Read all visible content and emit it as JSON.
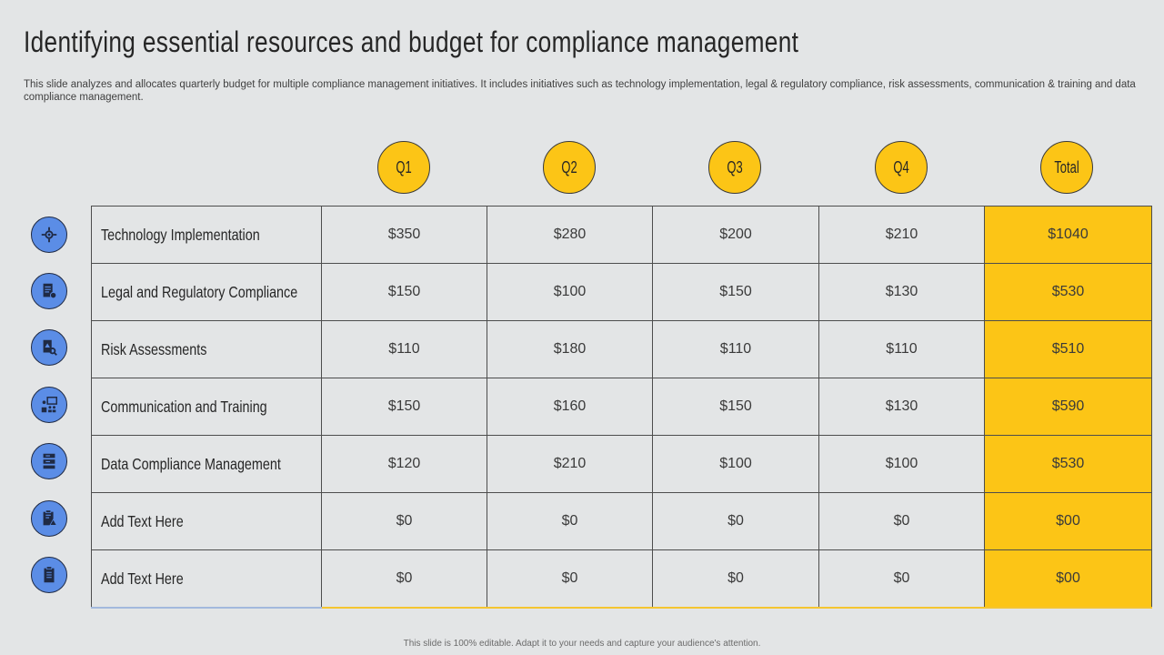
{
  "title": "Identifying essential resources and budget for compliance management",
  "subtitle": "This slide analyzes and allocates quarterly budget for multiple compliance management initiatives. It includes initiatives such as technology implementation, legal & regulatory compliance, risk assessments, communication & training and data compliance management.",
  "columns": [
    "Q1",
    "Q2",
    "Q3",
    "Q4",
    "Total"
  ],
  "rows": [
    {
      "label": "Technology  Implementation",
      "icon": "rocket-gear-icon",
      "q1": "$350",
      "q2": "$280",
      "q3": "$200",
      "q4": "$210",
      "total": "$1040"
    },
    {
      "label": "Legal and Regulatory Compliance",
      "icon": "legal-document-icon",
      "q1": "$150",
      "q2": "$100",
      "q3": "$150",
      "q4": "$130",
      "total": "$530"
    },
    {
      "label": "Risk Assessments",
      "icon": "risk-search-icon",
      "q1": "$110",
      "q2": "$180",
      "q3": "$110",
      "q4": "$110",
      "total": "$510"
    },
    {
      "label": "Communication and Training",
      "icon": "training-presentation-icon",
      "q1": "$150",
      "q2": "$160",
      "q3": "$150",
      "q4": "$130",
      "total": "$590"
    },
    {
      "label": "Data Compliance Management",
      "icon": "data-server-icon",
      "q1": "$120",
      "q2": "$210",
      "q3": "$100",
      "q4": "$100",
      "total": "$530"
    },
    {
      "label": "Add Text Here",
      "icon": "warning-clipboard-icon",
      "q1": "$0",
      "q2": "$0",
      "q3": "$0",
      "q4": "$0",
      "total": "$00"
    },
    {
      "label": "Add Text Here",
      "icon": "clipboard-icon",
      "q1": "$0",
      "q2": "$0",
      "q3": "$0",
      "q4": "$0",
      "total": "$00"
    }
  ],
  "footer": "This slide is 100% editable.  Adapt it to your needs and capture your audience's attention.",
  "colors": {
    "background": "#e3e5e6",
    "accent_yellow": "#fcc516",
    "icon_blue": "#5b8de6",
    "border": "#4d4d4d"
  }
}
